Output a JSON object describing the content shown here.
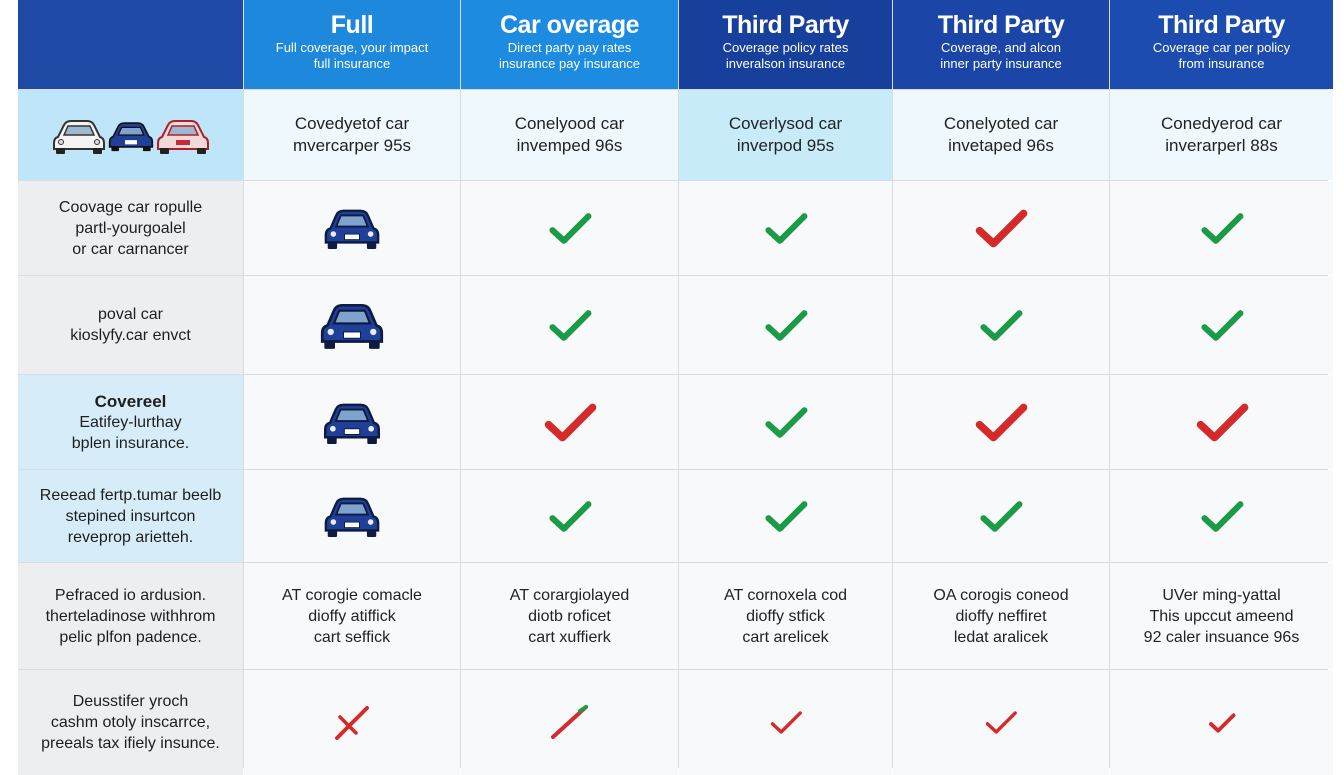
{
  "headers": [
    {
      "title": "",
      "sub": []
    },
    {
      "title": "Full",
      "sub": [
        "Full coverage, your impact",
        "full insurance"
      ]
    },
    {
      "title": "Car overage",
      "sub": [
        "Direct party pay rates",
        "insurance pay insurance"
      ]
    },
    {
      "title": "Third Party",
      "sub": [
        "Coverage policy rates",
        "inveralson insurance"
      ]
    },
    {
      "title": "Third Party",
      "sub": [
        "Coverage, and alcon",
        "inner party insurance"
      ]
    },
    {
      "title": "Third Party",
      "sub": [
        "Coverage car per policy",
        "from insurance"
      ]
    }
  ],
  "band_row": [
    [
      "Covedyetof car",
      "mvercarper 95s"
    ],
    [
      "Conelyood car",
      "invemped 96s"
    ],
    [
      "Coverlysod car",
      "inverpod 95s"
    ],
    [
      "Conelyoted car",
      "invetaped 96s"
    ],
    [
      "Conedyerod car",
      "inverarperl 88s"
    ]
  ],
  "rows": [
    {
      "label": [
        "Coovage car ropulle",
        "partl-yourgoalel",
        "or car carnancer"
      ],
      "marks": [
        "check",
        "check",
        "check-red",
        "check"
      ]
    },
    {
      "label": [
        "poval car",
        "kioslyfy.car envct"
      ],
      "marks": [
        "check",
        "check",
        "check",
        "check"
      ]
    },
    {
      "label": [
        "Covereel",
        "Eatifey-lurthay",
        "bplen insurance."
      ],
      "marks": [
        "check-red",
        "check",
        "check-red",
        "check-red"
      ]
    },
    {
      "label": [
        "Reeead fertp.tumar beelb",
        "stepined insurtcon",
        "reveprop arietteh."
      ],
      "marks": [
        "check",
        "check",
        "check",
        "check"
      ]
    },
    {
      "label": [
        "Pefraced io ardusion.",
        "therteladinose withhrom",
        "pelic plfon padence."
      ],
      "text": [
        [
          "AT corogie comacle",
          "dioffy atiffick",
          "cart seffick"
        ],
        [
          "AT corargiolayed",
          "diotb roficet",
          "cart xuffierk"
        ],
        [
          "AT cornoxela cod",
          "dioffy stfick",
          "cart arelicek"
        ],
        [
          "OA corogis coneod",
          "dioffy neffiret",
          "ledat aralicek"
        ],
        [
          "UVer ming-yattal",
          "This upccut ameend",
          "92 caler insuance 96s"
        ]
      ]
    },
    {
      "label": [
        "Deusstifer yroch",
        "cashm otoly inscarrce,",
        "preeals tax ifiely insunce."
      ],
      "marks": [
        "cross-red",
        "check-small",
        "check-red-small",
        "check-red-small",
        "check-red-bold"
      ]
    }
  ],
  "colors": {
    "check_green": "#1b9a47",
    "check_red": "#d42a2a",
    "car_blue": "#1f3f99"
  }
}
